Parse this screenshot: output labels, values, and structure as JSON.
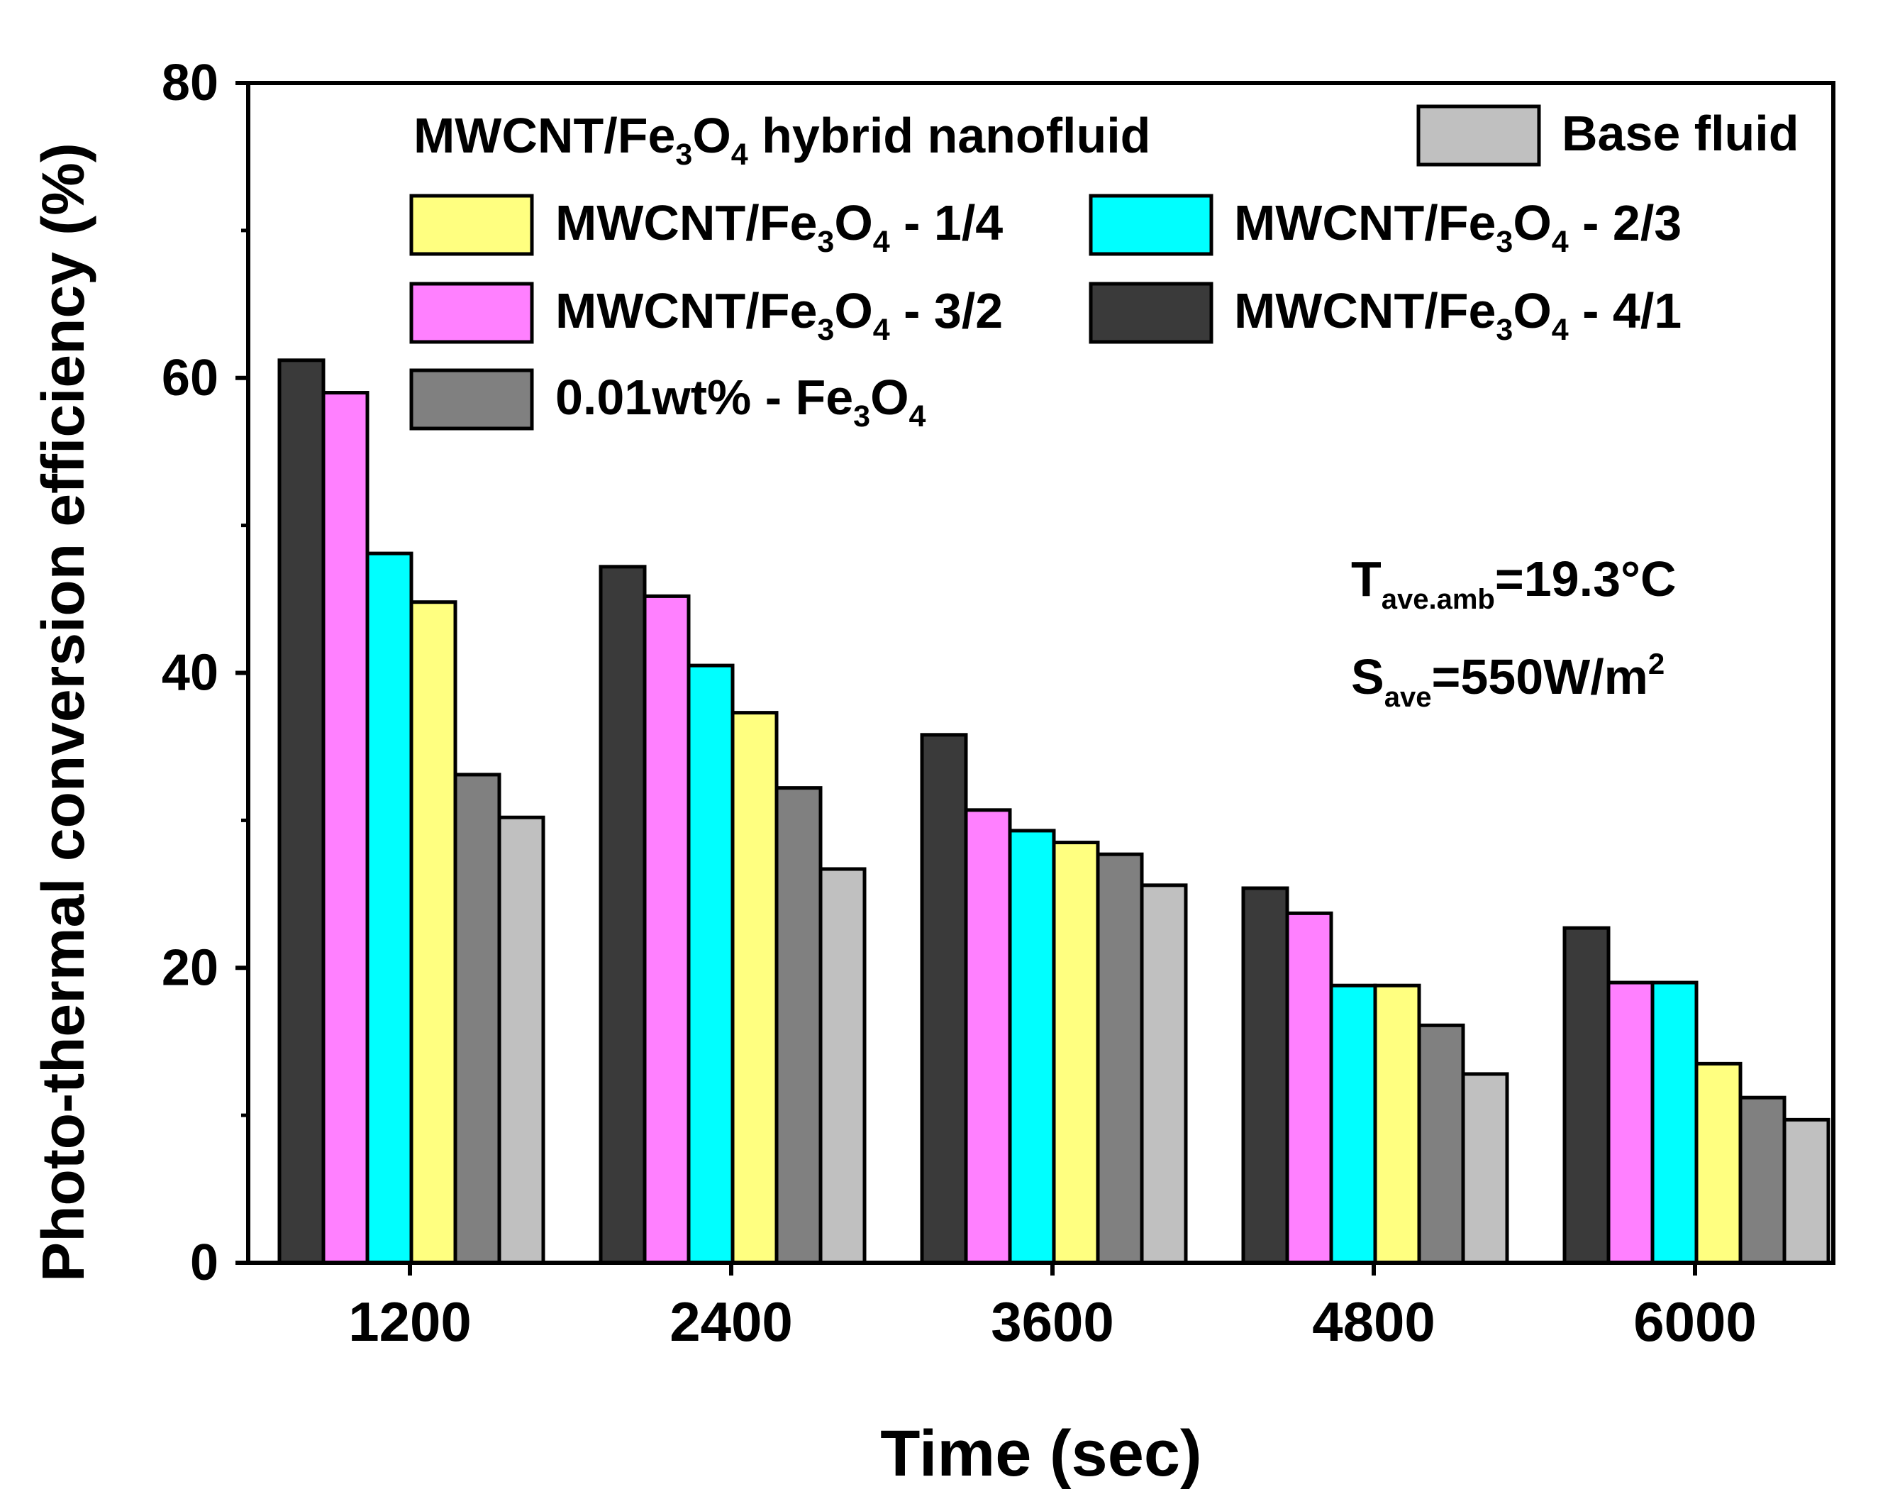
{
  "chart_data": {
    "type": "bar",
    "title": "",
    "xlabel": "Time (sec)",
    "ylabel": "Photo-thermal conversion efficiency (%)",
    "ylim": [
      0,
      80
    ],
    "yticks": [
      0,
      20,
      40,
      60,
      80
    ],
    "categories": [
      "1200",
      "2400",
      "3600",
      "4800",
      "6000"
    ],
    "legend_title": {
      "pre": "MWCNT/Fe",
      "sub1": "3",
      "mid": "O",
      "sub2": "4",
      "post": " hybrid nanofluid"
    },
    "series": [
      {
        "name": "MWCNT/Fe3O4 - 4/1",
        "color": "#3a3a3a",
        "label": {
          "pre": "MWCNT/Fe",
          "sub1": "3",
          "mid": "O",
          "sub2": "4",
          "post": " - 4/1"
        },
        "values": [
          61.2,
          47.2,
          35.8,
          25.4,
          22.7
        ]
      },
      {
        "name": "MWCNT/Fe3O4 - 3/2",
        "color": "#ff80ff",
        "label": {
          "pre": "MWCNT/Fe",
          "sub1": "3",
          "mid": "O",
          "sub2": "4",
          "post": " - 3/2"
        },
        "values": [
          59.0,
          45.2,
          30.7,
          23.7,
          19.0
        ]
      },
      {
        "name": "MWCNT/Fe3O4 - 2/3",
        "color": "#00ffff",
        "label": {
          "pre": "MWCNT/Fe",
          "sub1": "3",
          "mid": "O",
          "sub2": "4",
          "post": " - 2/3"
        },
        "values": [
          48.1,
          40.5,
          29.3,
          18.8,
          19.0
        ]
      },
      {
        "name": "MWCNT/Fe3O4 - 1/4",
        "color": "#ffff80",
        "label": {
          "pre": "MWCNT/Fe",
          "sub1": "3",
          "mid": "O",
          "sub2": "4",
          "post": " - 1/4"
        },
        "values": [
          44.8,
          37.3,
          28.5,
          18.8,
          13.5
        ]
      },
      {
        "name": "0.01wt% - Fe3O4",
        "color": "#808080",
        "label": {
          "pre": "0.01wt% - Fe",
          "sub1": "3",
          "mid": "O",
          "sub2": "4",
          "post": ""
        },
        "values": [
          33.1,
          32.2,
          27.7,
          16.1,
          11.2
        ]
      },
      {
        "name": "Base fluid",
        "color": "#c0c0c0",
        "label": {
          "pre": "Base fluid",
          "sub1": "",
          "mid": "",
          "sub2": "",
          "post": ""
        },
        "values": [
          30.2,
          26.7,
          25.6,
          12.8,
          9.7
        ]
      }
    ],
    "annotations": [
      {
        "main": "T",
        "sub": "ave.amb",
        "rest": "=19.3°C",
        "sup": ""
      },
      {
        "main": "S",
        "sub": "ave",
        "rest": "=550W/m",
        "sup": "2"
      }
    ]
  }
}
